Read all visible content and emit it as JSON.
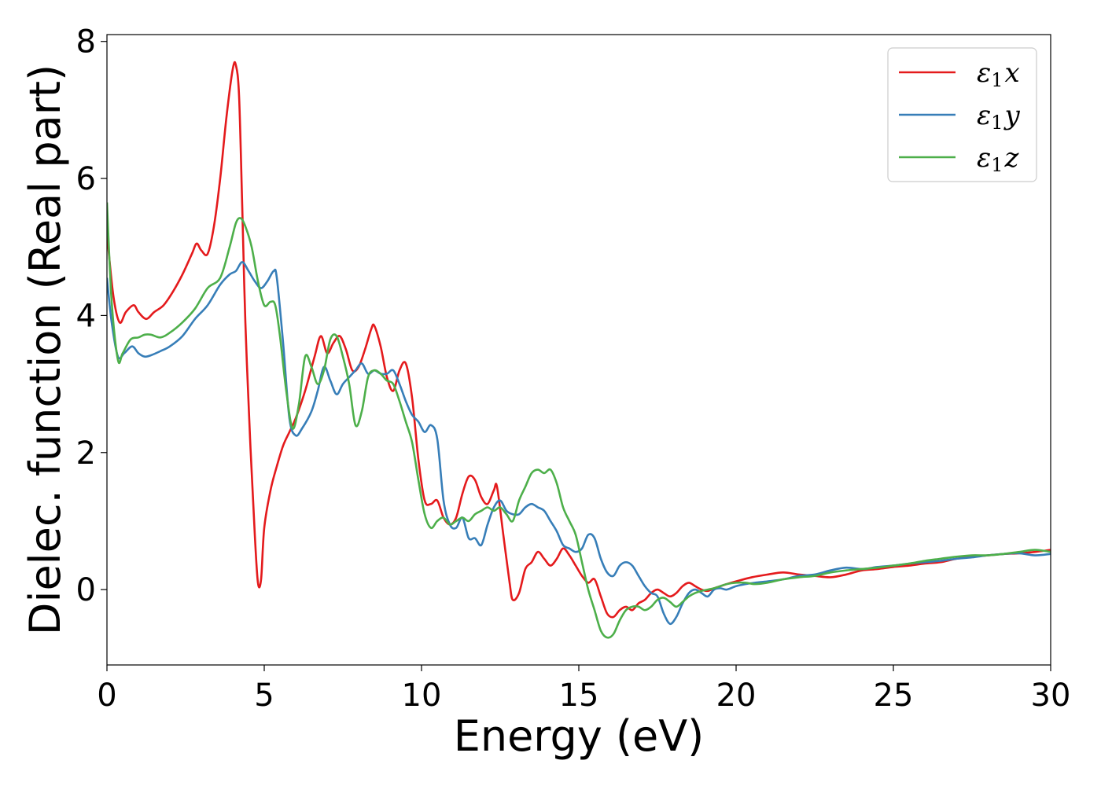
{
  "chart_data": {
    "type": "line",
    "title": "",
    "xlabel": "Energy (eV)",
    "ylabel": "Dielec. function (Real part)",
    "xlim": [
      0,
      30
    ],
    "ylim": [
      -1.1,
      8.1
    ],
    "xticks": [
      0,
      5,
      10,
      15,
      20,
      25,
      30
    ],
    "yticks": [
      0,
      2,
      4,
      6,
      8
    ],
    "grid": false,
    "legend_position": "top-right",
    "series": [
      {
        "name": "ε1x",
        "legend_main": "ε",
        "legend_sub": "1",
        "legend_axis": "x",
        "color": "#e41a1c",
        "x": [
          0,
          0.2,
          0.4,
          0.6,
          0.85,
          1.0,
          1.25,
          1.5,
          1.8,
          2.1,
          2.4,
          2.7,
          2.85,
          3.0,
          3.2,
          3.4,
          3.6,
          3.8,
          4.0,
          4.1,
          4.2,
          4.3,
          4.4,
          4.55,
          4.7,
          4.8,
          4.9,
          5.0,
          5.2,
          5.4,
          5.6,
          5.8,
          6.0,
          6.3,
          6.6,
          6.8,
          7.0,
          7.2,
          7.4,
          7.6,
          7.8,
          8.0,
          8.2,
          8.4,
          8.5,
          8.7,
          8.9,
          9.1,
          9.3,
          9.5,
          9.7,
          9.9,
          10.1,
          10.3,
          10.5,
          10.7,
          10.9,
          11.1,
          11.3,
          11.5,
          11.7,
          11.9,
          12.1,
          12.3,
          12.4,
          12.6,
          12.8,
          12.9,
          13.1,
          13.3,
          13.5,
          13.7,
          13.9,
          14.1,
          14.3,
          14.5,
          14.7,
          14.9,
          15.1,
          15.3,
          15.5,
          15.7,
          15.9,
          16.1,
          16.3,
          16.5,
          16.7,
          16.9,
          17.1,
          17.3,
          17.5,
          17.7,
          17.9,
          18.1,
          18.3,
          18.5,
          18.7,
          18.9,
          19.1,
          19.3,
          19.5,
          19.7,
          20.0,
          20.5,
          21.0,
          21.5,
          22.0,
          22.5,
          23.0,
          23.5,
          24.0,
          24.5,
          25.0,
          25.5,
          26.0,
          26.5,
          27.0,
          27.5,
          28.0,
          28.5,
          29.0,
          29.5,
          30.0
        ],
        "y": [
          5.2,
          4.3,
          3.9,
          4.05,
          4.15,
          4.05,
          3.95,
          4.05,
          4.15,
          4.35,
          4.6,
          4.9,
          5.05,
          4.95,
          4.9,
          5.3,
          6.0,
          6.9,
          7.6,
          7.65,
          7.2,
          5.6,
          3.9,
          2.2,
          0.8,
          0.1,
          0.15,
          0.9,
          1.45,
          1.8,
          2.1,
          2.3,
          2.5,
          2.9,
          3.4,
          3.7,
          3.45,
          3.6,
          3.7,
          3.5,
          3.2,
          3.25,
          3.5,
          3.8,
          3.85,
          3.55,
          3.1,
          2.9,
          3.2,
          3.3,
          2.8,
          1.9,
          1.3,
          1.25,
          1.3,
          1.05,
          0.95,
          1.05,
          1.4,
          1.65,
          1.6,
          1.35,
          1.25,
          1.45,
          1.5,
          0.8,
          0.1,
          -0.15,
          -0.05,
          0.3,
          0.4,
          0.55,
          0.45,
          0.35,
          0.45,
          0.6,
          0.5,
          0.35,
          0.2,
          0.1,
          0.15,
          -0.1,
          -0.35,
          -0.4,
          -0.3,
          -0.25,
          -0.3,
          -0.2,
          -0.15,
          -0.05,
          0.0,
          -0.05,
          -0.1,
          -0.05,
          0.05,
          0.1,
          0.05,
          0.0,
          -0.02,
          0.02,
          0.05,
          0.08,
          0.12,
          0.18,
          0.22,
          0.25,
          0.22,
          0.2,
          0.18,
          0.22,
          0.28,
          0.3,
          0.33,
          0.35,
          0.38,
          0.4,
          0.45,
          0.48,
          0.5,
          0.52,
          0.53,
          0.55,
          0.58
        ]
      },
      {
        "name": "ε1y",
        "legend_main": "ε",
        "legend_sub": "1",
        "legend_axis": "y",
        "color": "#377eb8",
        "x": [
          0,
          0.15,
          0.35,
          0.55,
          0.8,
          1.0,
          1.2,
          1.4,
          1.7,
          2.0,
          2.4,
          2.8,
          3.2,
          3.6,
          3.9,
          4.1,
          4.3,
          4.5,
          4.7,
          4.9,
          5.1,
          5.3,
          5.4,
          5.6,
          5.8,
          6.0,
          6.2,
          6.5,
          6.7,
          6.9,
          7.1,
          7.3,
          7.5,
          7.7,
          7.9,
          8.1,
          8.3,
          8.5,
          8.7,
          8.9,
          9.1,
          9.3,
          9.5,
          9.7,
          9.9,
          10.1,
          10.3,
          10.5,
          10.7,
          10.9,
          11.1,
          11.3,
          11.5,
          11.7,
          11.9,
          12.1,
          12.3,
          12.5,
          12.7,
          12.9,
          13.1,
          13.3,
          13.5,
          13.7,
          13.9,
          14.1,
          14.3,
          14.5,
          14.7,
          14.9,
          15.1,
          15.3,
          15.5,
          15.7,
          15.9,
          16.1,
          16.3,
          16.5,
          16.7,
          16.9,
          17.1,
          17.3,
          17.5,
          17.7,
          17.9,
          18.1,
          18.3,
          18.5,
          18.7,
          18.9,
          19.1,
          19.3,
          19.5,
          19.7,
          20.0,
          20.3,
          20.6,
          21.0,
          21.5,
          22.0,
          22.5,
          23.0,
          23.5,
          24.0,
          24.5,
          25.0,
          25.5,
          26.0,
          26.5,
          27.0,
          27.5,
          28.0,
          28.5,
          29.0,
          29.5,
          30.0
        ],
        "y": [
          4.55,
          3.9,
          3.4,
          3.45,
          3.55,
          3.45,
          3.4,
          3.42,
          3.48,
          3.55,
          3.7,
          3.95,
          4.15,
          4.45,
          4.6,
          4.65,
          4.78,
          4.65,
          4.5,
          4.4,
          4.5,
          4.65,
          4.55,
          3.6,
          2.5,
          2.25,
          2.35,
          2.6,
          2.9,
          3.25,
          3.05,
          2.85,
          3.0,
          3.1,
          3.2,
          3.3,
          3.15,
          3.2,
          3.15,
          3.15,
          3.2,
          3.0,
          2.75,
          2.55,
          2.45,
          2.3,
          2.4,
          2.2,
          1.3,
          0.95,
          0.9,
          1.05,
          0.75,
          0.75,
          0.65,
          0.95,
          1.2,
          1.3,
          1.15,
          1.1,
          1.1,
          1.2,
          1.25,
          1.2,
          1.15,
          1.0,
          0.85,
          0.65,
          0.6,
          0.55,
          0.6,
          0.8,
          0.75,
          0.45,
          0.25,
          0.2,
          0.35,
          0.4,
          0.35,
          0.2,
          0.05,
          -0.05,
          -0.1,
          -0.35,
          -0.5,
          -0.4,
          -0.2,
          -0.05,
          0.0,
          -0.05,
          -0.1,
          0.0,
          0.02,
          0.0,
          0.05,
          0.08,
          0.1,
          0.12,
          0.15,
          0.2,
          0.22,
          0.28,
          0.32,
          0.3,
          0.33,
          0.35,
          0.38,
          0.4,
          0.42,
          0.45,
          0.47,
          0.5,
          0.52,
          0.53,
          0.5,
          0.52
        ]
      },
      {
        "name": "ε1z",
        "legend_main": "ε",
        "legend_sub": "1",
        "legend_axis": "z",
        "color": "#4daf4a",
        "x": [
          0,
          0.15,
          0.35,
          0.5,
          0.75,
          1.0,
          1.2,
          1.4,
          1.7,
          2.0,
          2.4,
          2.8,
          3.2,
          3.6,
          3.9,
          4.1,
          4.25,
          4.4,
          4.6,
          4.8,
          5.0,
          5.2,
          5.35,
          5.5,
          5.7,
          5.9,
          6.1,
          6.3,
          6.5,
          6.7,
          6.9,
          7.1,
          7.3,
          7.5,
          7.7,
          7.9,
          8.1,
          8.3,
          8.5,
          8.7,
          8.9,
          9.1,
          9.3,
          9.5,
          9.7,
          9.9,
          10.1,
          10.3,
          10.5,
          10.7,
          10.9,
          11.1,
          11.3,
          11.5,
          11.7,
          11.9,
          12.1,
          12.3,
          12.5,
          12.7,
          12.9,
          13.1,
          13.3,
          13.5,
          13.7,
          13.9,
          14.1,
          14.3,
          14.5,
          14.7,
          14.9,
          15.1,
          15.3,
          15.5,
          15.7,
          15.9,
          16.1,
          16.3,
          16.5,
          16.7,
          16.9,
          17.1,
          17.3,
          17.5,
          17.7,
          17.9,
          18.1,
          18.3,
          18.5,
          18.7,
          18.9,
          19.1,
          19.3,
          19.5,
          19.7,
          20.0,
          20.3,
          20.6,
          21.0,
          21.5,
          22.0,
          22.5,
          23.0,
          23.5,
          24.0,
          24.5,
          25.0,
          25.5,
          26.0,
          26.5,
          27.0,
          27.5,
          28.0,
          28.5,
          29.0,
          29.5,
          30.0
        ],
        "y": [
          5.65,
          4.2,
          3.35,
          3.45,
          3.65,
          3.68,
          3.72,
          3.72,
          3.68,
          3.75,
          3.9,
          4.1,
          4.4,
          4.55,
          5.0,
          5.35,
          5.42,
          5.3,
          5.0,
          4.5,
          4.15,
          4.2,
          4.15,
          3.7,
          2.9,
          2.35,
          2.7,
          3.4,
          3.25,
          3.0,
          3.2,
          3.65,
          3.7,
          3.4,
          3.0,
          2.4,
          2.6,
          3.1,
          3.2,
          3.15,
          3.05,
          3.0,
          2.75,
          2.45,
          2.15,
          1.6,
          1.1,
          0.9,
          1.0,
          1.05,
          0.95,
          1.0,
          1.05,
          1.0,
          1.1,
          1.15,
          1.2,
          1.15,
          1.2,
          1.1,
          1.0,
          1.3,
          1.5,
          1.7,
          1.75,
          1.7,
          1.75,
          1.55,
          1.2,
          1.0,
          0.8,
          0.4,
          0.0,
          -0.3,
          -0.6,
          -0.7,
          -0.65,
          -0.45,
          -0.3,
          -0.25,
          -0.25,
          -0.3,
          -0.25,
          -0.15,
          -0.12,
          -0.18,
          -0.25,
          -0.18,
          -0.1,
          -0.05,
          -0.02,
          0.0,
          0.02,
          0.05,
          0.08,
          0.1,
          0.1,
          0.08,
          0.1,
          0.15,
          0.18,
          0.2,
          0.25,
          0.28,
          0.3,
          0.32,
          0.35,
          0.38,
          0.42,
          0.45,
          0.48,
          0.5,
          0.5,
          0.52,
          0.55,
          0.58,
          0.55
        ]
      }
    ]
  }
}
